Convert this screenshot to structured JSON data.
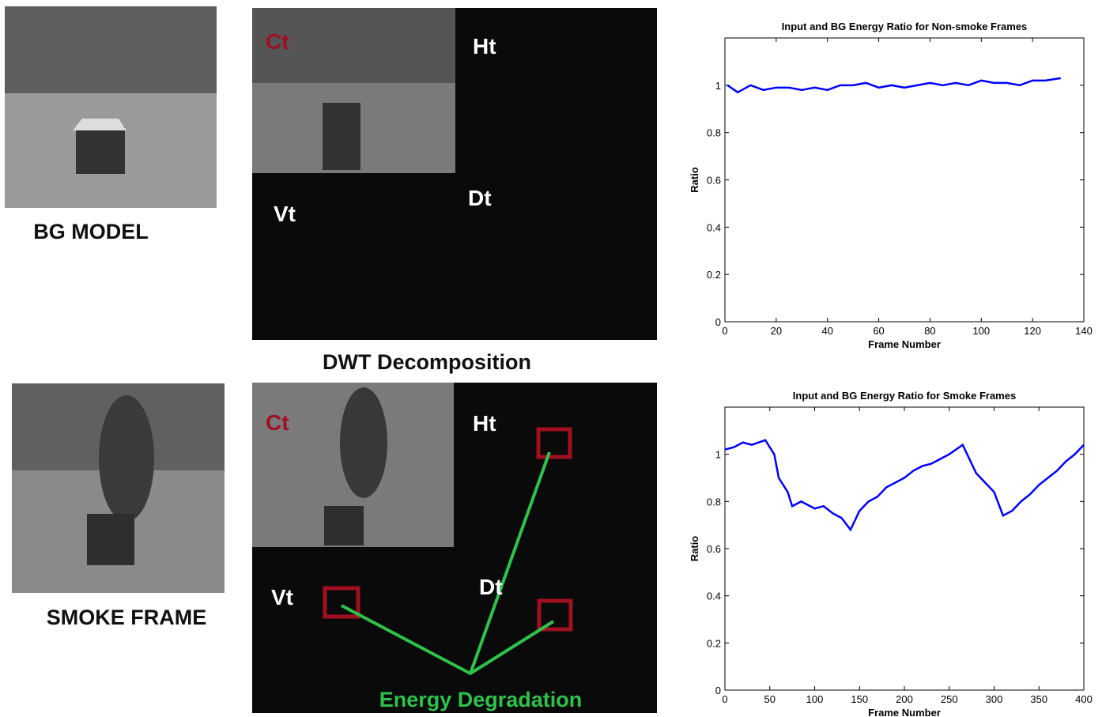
{
  "labels": {
    "bg_model": "BG MODEL",
    "smoke_frame": "SMOKE FRAME",
    "dwt": "DWT Decomposition",
    "energy": "Energy Degradation",
    "subbands": [
      "Ct",
      "Ht",
      "Vt",
      "Dt"
    ]
  },
  "chart_data": [
    {
      "type": "line",
      "title": "Input and BG Energy Ratio for Non-smoke Frames",
      "x_label": "Frame Number",
      "y_label": "Ratio",
      "x": [
        1,
        5,
        10,
        15,
        20,
        25,
        30,
        35,
        40,
        45,
        50,
        55,
        60,
        65,
        70,
        75,
        80,
        85,
        90,
        95,
        100,
        105,
        110,
        115,
        120,
        125,
        131
      ],
      "series": [
        {
          "color": "#0000ff",
          "values": [
            1.0,
            0.97,
            1.0,
            0.98,
            0.99,
            0.99,
            0.98,
            0.99,
            0.98,
            1.0,
            1.0,
            1.01,
            0.99,
            1.0,
            0.99,
            1.0,
            1.01,
            1.0,
            1.01,
            1.0,
            1.02,
            1.01,
            1.01,
            1.0,
            1.02,
            1.02,
            1.03
          ]
        }
      ],
      "xlim": [
        0,
        140
      ],
      "xticks": [
        0,
        20,
        40,
        60,
        80,
        100,
        120,
        140
      ],
      "ylim": [
        0,
        1.2
      ],
      "yticks": [
        0,
        0.2,
        0.4,
        0.6,
        0.8,
        1
      ]
    },
    {
      "type": "line",
      "title": "Input and BG Energy Ratio for Smoke Frames",
      "x_label": "Frame Number",
      "y_label": "Ratio",
      "x": [
        0,
        10,
        20,
        30,
        45,
        55,
        60,
        70,
        75,
        85,
        100,
        110,
        120,
        130,
        140,
        150,
        160,
        170,
        180,
        190,
        200,
        210,
        220,
        230,
        240,
        250,
        265,
        275,
        280,
        290,
        300,
        310,
        320,
        330,
        340,
        350,
        360,
        370,
        380,
        390,
        400
      ],
      "series": [
        {
          "color": "#0000ff",
          "values": [
            1.02,
            1.03,
            1.05,
            1.04,
            1.06,
            1.0,
            0.9,
            0.84,
            0.78,
            0.8,
            0.77,
            0.78,
            0.75,
            0.73,
            0.68,
            0.76,
            0.8,
            0.82,
            0.86,
            0.88,
            0.9,
            0.93,
            0.95,
            0.96,
            0.98,
            1.0,
            1.04,
            0.96,
            0.92,
            0.88,
            0.84,
            0.74,
            0.76,
            0.8,
            0.83,
            0.87,
            0.9,
            0.93,
            0.97,
            1.0,
            1.04
          ]
        }
      ],
      "xlim": [
        0,
        400
      ],
      "xticks": [
        0,
        50,
        100,
        150,
        200,
        250,
        300,
        350,
        400
      ],
      "ylim": [
        0,
        1.2
      ],
      "yticks": [
        0,
        0.2,
        0.4,
        0.6,
        0.8,
        1
      ]
    }
  ]
}
